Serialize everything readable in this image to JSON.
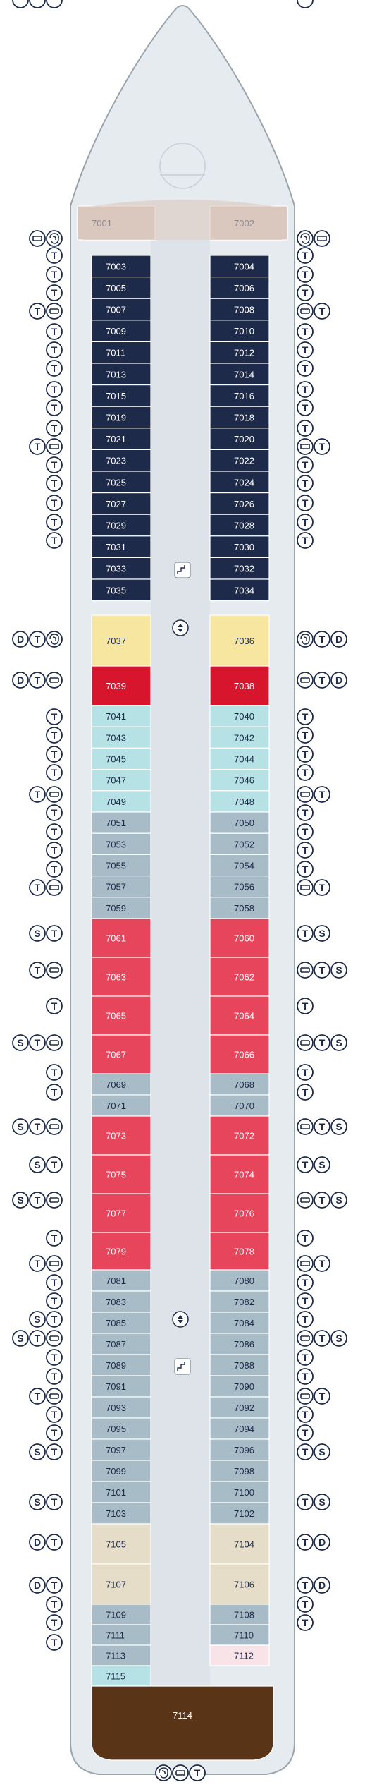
{
  "colors": {
    "hull": "#e6ebef",
    "hull_stroke": "#9aa4ad",
    "corridor": "#dde3e8",
    "bow": "#dac7bd",
    "navy": "#1d2a4a",
    "yellow": "#f6e6a0",
    "red": "#d7162e",
    "pink": "#e6455c",
    "aqua": "#b6e2e6",
    "gray": "#a7bcc7",
    "beige": "#e6ddc8",
    "lightpink": "#f8e3e8",
    "brown": "#5a3416",
    "icon": "#1d2a4a"
  },
  "left_cabins": [
    {
      "num": "7001",
      "color": "bow",
      "icons": [
        "balcony",
        "spa"
      ]
    },
    {
      "num": "7003",
      "color": "navy",
      "icons": [
        "tub"
      ]
    },
    {
      "num": "7005",
      "color": "navy",
      "icons": [
        "tub"
      ]
    },
    {
      "num": "7007",
      "color": "navy",
      "icons": [
        "tub"
      ]
    },
    {
      "num": "7009",
      "color": "navy",
      "icons": [
        "tub",
        "balcony"
      ]
    },
    {
      "num": "7011",
      "color": "navy",
      "icons": [
        "tub"
      ]
    },
    {
      "num": "7013",
      "color": "navy",
      "icons": [
        "tub"
      ]
    },
    {
      "num": "7015",
      "color": "navy",
      "icons": [
        "tub"
      ]
    },
    {
      "num": "7019",
      "color": "navy",
      "icons": [
        "tub"
      ]
    },
    {
      "num": "7021",
      "color": "navy",
      "icons": [
        "tub"
      ]
    },
    {
      "num": "7023",
      "color": "navy",
      "icons": [
        "tub"
      ]
    },
    {
      "num": "7025",
      "color": "navy",
      "icons": [
        "tub",
        "balcony"
      ]
    },
    {
      "num": "7027",
      "color": "navy",
      "icons": [
        "tub"
      ]
    },
    {
      "num": "7029",
      "color": "navy",
      "icons": [
        "tub"
      ]
    },
    {
      "num": "7031",
      "color": "navy",
      "icons": [
        "tub"
      ]
    },
    {
      "num": "7033",
      "color": "navy",
      "icons": [
        "tub"
      ]
    },
    {
      "num": "7035",
      "color": "navy",
      "icons": [
        "tub"
      ]
    },
    {
      "num": "7037",
      "color": "yellow",
      "icons": [
        "double",
        "tub",
        "spa"
      ]
    },
    {
      "num": "7039",
      "color": "red",
      "icons": [
        "double",
        "tub",
        "balcony"
      ]
    },
    {
      "num": "7041",
      "color": "aqua",
      "icons": [
        "tub"
      ]
    },
    {
      "num": "7043",
      "color": "aqua",
      "icons": [
        "tub"
      ]
    },
    {
      "num": "7045",
      "color": "aqua",
      "icons": [
        "tub"
      ]
    },
    {
      "num": "7047",
      "color": "aqua",
      "icons": [
        "tub"
      ]
    },
    {
      "num": "7049",
      "color": "aqua",
      "icons": [
        "tub",
        "balcony"
      ]
    },
    {
      "num": "7051",
      "color": "gray",
      "icons": [
        "tub"
      ]
    },
    {
      "num": "7053",
      "color": "gray",
      "icons": [
        "tub"
      ]
    },
    {
      "num": "7055",
      "color": "gray",
      "icons": [
        "tub"
      ]
    },
    {
      "num": "7057",
      "color": "gray",
      "icons": [
        "tub"
      ]
    },
    {
      "num": "7059",
      "color": "gray",
      "icons": [
        "tub",
        "balcony"
      ]
    },
    {
      "num": "7061",
      "color": "pink",
      "icons": [
        "shower",
        "tub"
      ]
    },
    {
      "num": "7063",
      "color": "pink",
      "icons": [
        "tub",
        "balcony"
      ]
    },
    {
      "num": "7065",
      "color": "pink",
      "icons": [
        "tub"
      ]
    },
    {
      "num": "7067",
      "color": "pink",
      "icons": [
        "shower",
        "tub",
        "balcony"
      ]
    },
    {
      "num": "7069",
      "color": "gray",
      "icons": [
        "tub"
      ]
    },
    {
      "num": "7071",
      "color": "gray",
      "icons": [
        "tub"
      ]
    },
    {
      "num": "7073",
      "color": "pink",
      "icons": [
        "shower",
        "tub",
        "balcony"
      ]
    },
    {
      "num": "7075",
      "color": "pink",
      "icons": [
        "shower",
        "tub"
      ]
    },
    {
      "num": "7077",
      "color": "pink",
      "icons": [
        "shower",
        "tub",
        "balcony"
      ]
    },
    {
      "num": "7079",
      "color": "pink",
      "icons": [
        "tub"
      ]
    },
    {
      "num": "7081",
      "color": "gray",
      "icons": [
        "tub",
        "balcony"
      ]
    },
    {
      "num": "7083",
      "color": "gray",
      "icons": [
        "tub"
      ]
    },
    {
      "num": "7085",
      "color": "gray",
      "icons": [
        "tub"
      ]
    },
    {
      "num": "7087",
      "color": "gray",
      "icons": [
        "shower",
        "tub"
      ]
    },
    {
      "num": "7089",
      "color": "gray",
      "icons": [
        "shower",
        "tub",
        "balcony"
      ]
    },
    {
      "num": "7091",
      "color": "gray",
      "icons": [
        "tub"
      ]
    },
    {
      "num": "7093",
      "color": "gray",
      "icons": [
        "tub"
      ]
    },
    {
      "num": "7095",
      "color": "gray",
      "icons": [
        "tub",
        "balcony"
      ]
    },
    {
      "num": "7097",
      "color": "gray",
      "icons": [
        "tub"
      ]
    },
    {
      "num": "7099",
      "color": "gray",
      "icons": [
        "tub"
      ]
    },
    {
      "num": "7101",
      "color": "gray",
      "icons": [
        "shower",
        "tub"
      ]
    },
    {
      "num": "7103",
      "color": "gray",
      "icons": [
        "shower",
        "tub"
      ]
    },
    {
      "num": "7105",
      "color": "beige",
      "icons": [
        "double",
        "tub"
      ]
    },
    {
      "num": "7107",
      "color": "beige",
      "icons": [
        "double",
        "tub"
      ]
    },
    {
      "num": "7109",
      "color": "gray",
      "icons": [
        "tub"
      ]
    },
    {
      "num": "7111",
      "color": "gray",
      "icons": [
        "tub"
      ]
    },
    {
      "num": "7113",
      "color": "gray",
      "icons": [
        "tub"
      ]
    },
    {
      "num": "7115",
      "color": "aqua",
      "icons": [
        "shower",
        "tub",
        "balcony"
      ]
    }
  ],
  "right_cabins": [
    {
      "num": "7002",
      "color": "bow",
      "icons": [
        "spa",
        "balcony"
      ]
    },
    {
      "num": "7004",
      "color": "navy",
      "icons": [
        "tub"
      ]
    },
    {
      "num": "7006",
      "color": "navy",
      "icons": [
        "tub"
      ]
    },
    {
      "num": "7008",
      "color": "navy",
      "icons": [
        "tub"
      ]
    },
    {
      "num": "7010",
      "color": "navy",
      "icons": [
        "balcony",
        "tub"
      ]
    },
    {
      "num": "7012",
      "color": "navy",
      "icons": [
        "tub"
      ]
    },
    {
      "num": "7014",
      "color": "navy",
      "icons": [
        "tub"
      ]
    },
    {
      "num": "7016",
      "color": "navy",
      "icons": [
        "tub"
      ]
    },
    {
      "num": "7018",
      "color": "navy",
      "icons": [
        "tub"
      ]
    },
    {
      "num": "7020",
      "color": "navy",
      "icons": [
        "tub"
      ]
    },
    {
      "num": "7022",
      "color": "navy",
      "icons": [
        "tub"
      ]
    },
    {
      "num": "7024",
      "color": "navy",
      "icons": [
        "balcony",
        "tub"
      ]
    },
    {
      "num": "7026",
      "color": "navy",
      "icons": [
        "tub"
      ]
    },
    {
      "num": "7028",
      "color": "navy",
      "icons": [
        "tub"
      ]
    },
    {
      "num": "7030",
      "color": "navy",
      "icons": [
        "tub"
      ]
    },
    {
      "num": "7032",
      "color": "navy",
      "icons": [
        "tub"
      ]
    },
    {
      "num": "7034",
      "color": "navy",
      "icons": [
        "tub"
      ]
    },
    {
      "num": "7036",
      "color": "yellow",
      "icons": [
        "spa",
        "tub",
        "double"
      ]
    },
    {
      "num": "7038",
      "color": "red",
      "icons": [
        "balcony",
        "tub",
        "double"
      ]
    },
    {
      "num": "7040",
      "color": "aqua",
      "icons": [
        "tub"
      ]
    },
    {
      "num": "7042",
      "color": "aqua",
      "icons": [
        "tub"
      ]
    },
    {
      "num": "7044",
      "color": "aqua",
      "icons": [
        "tub"
      ]
    },
    {
      "num": "7046",
      "color": "aqua",
      "icons": [
        "tub"
      ]
    },
    {
      "num": "7048",
      "color": "aqua",
      "icons": [
        "balcony",
        "tub"
      ]
    },
    {
      "num": "7050",
      "color": "gray",
      "icons": [
        "tub"
      ]
    },
    {
      "num": "7052",
      "color": "gray",
      "icons": [
        "tub"
      ]
    },
    {
      "num": "7054",
      "color": "gray",
      "icons": [
        "tub"
      ]
    },
    {
      "num": "7056",
      "color": "gray",
      "icons": [
        "tub"
      ]
    },
    {
      "num": "7058",
      "color": "gray",
      "icons": [
        "balcony",
        "tub"
      ]
    },
    {
      "num": "7060",
      "color": "pink",
      "icons": [
        "tub",
        "shower"
      ]
    },
    {
      "num": "7062",
      "color": "pink",
      "icons": [
        "balcony",
        "tub",
        "shower"
      ]
    },
    {
      "num": "7064",
      "color": "pink",
      "icons": [
        "tub"
      ]
    },
    {
      "num": "7066",
      "color": "pink",
      "icons": [
        "balcony",
        "tub",
        "shower"
      ]
    },
    {
      "num": "7068",
      "color": "gray",
      "icons": [
        "tub"
      ]
    },
    {
      "num": "7070",
      "color": "gray",
      "icons": [
        "tub"
      ]
    },
    {
      "num": "7072",
      "color": "pink",
      "icons": [
        "balcony",
        "tub",
        "shower"
      ]
    },
    {
      "num": "7074",
      "color": "pink",
      "icons": [
        "tub",
        "shower"
      ]
    },
    {
      "num": "7076",
      "color": "pink",
      "icons": [
        "balcony",
        "tub",
        "shower"
      ]
    },
    {
      "num": "7078",
      "color": "pink",
      "icons": [
        "tub"
      ]
    },
    {
      "num": "7080",
      "color": "gray",
      "icons": [
        "balcony",
        "tub"
      ]
    },
    {
      "num": "7082",
      "color": "gray",
      "icons": [
        "tub"
      ]
    },
    {
      "num": "7084",
      "color": "gray",
      "icons": [
        "tub"
      ]
    },
    {
      "num": "7086",
      "color": "gray",
      "icons": [
        "tub"
      ]
    },
    {
      "num": "7088",
      "color": "gray",
      "icons": [
        "balcony",
        "tub",
        "shower"
      ]
    },
    {
      "num": "7090",
      "color": "gray",
      "icons": [
        "tub"
      ]
    },
    {
      "num": "7092",
      "color": "gray",
      "icons": [
        "tub"
      ]
    },
    {
      "num": "7094",
      "color": "gray",
      "icons": [
        "balcony",
        "tub"
      ]
    },
    {
      "num": "7096",
      "color": "gray",
      "icons": [
        "tub"
      ]
    },
    {
      "num": "7098",
      "color": "gray",
      "icons": [
        "tub"
      ]
    },
    {
      "num": "7100",
      "color": "gray",
      "icons": [
        "tub",
        "shower"
      ]
    },
    {
      "num": "7102",
      "color": "gray",
      "icons": [
        "tub",
        "shower"
      ]
    },
    {
      "num": "7104",
      "color": "beige",
      "icons": [
        "tub",
        "double"
      ]
    },
    {
      "num": "7106",
      "color": "beige",
      "icons": [
        "tub",
        "double"
      ]
    },
    {
      "num": "7108",
      "color": "gray",
      "icons": [
        "tub"
      ]
    },
    {
      "num": "7110",
      "color": "gray",
      "icons": [
        "tub"
      ]
    },
    {
      "num": "7112",
      "color": "lightpink",
      "icons": [
        "tub"
      ]
    }
  ],
  "stern_cabin": {
    "num": "7114",
    "color": "brown",
    "icons": [
      "spa",
      "balcony",
      "tub"
    ]
  },
  "icon_glyphs": {
    "tub": "T",
    "shower": "S",
    "double": "D"
  }
}
